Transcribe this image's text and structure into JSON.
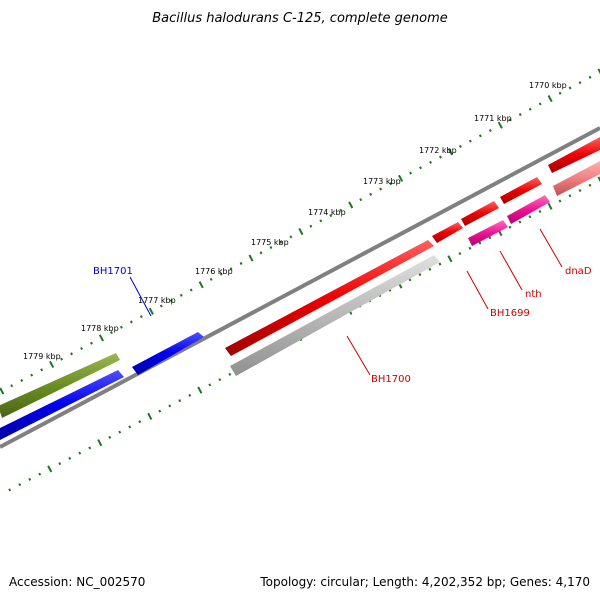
{
  "title": "Bacillus halodurans C-125, complete genome",
  "footer": {
    "accession": "Accession: NC_002570",
    "summary": "Topology: circular; Length: 4,202,352 bp; Genes: 4,170"
  },
  "scale_labels": [
    "1770 kbp",
    "1771 kbp",
    "1772 kbp",
    "1773 kbp",
    "1774 kbp",
    "1775 kbp",
    "1776 kbp",
    "1777 kbp",
    "1778 kbp",
    "1779 kbp"
  ],
  "genes": [
    {
      "name": "BH1701",
      "color": "#0000cc"
    },
    {
      "name": "BH1700",
      "color": "#cc0000"
    },
    {
      "name": "BH1699",
      "color": "#cc0000"
    },
    {
      "name": "nth",
      "color": "#cc0000"
    },
    {
      "name": "dnaD",
      "color": "#cc0000"
    }
  ],
  "colors": {
    "backbone": "#808080",
    "tick": "#1a7a1a",
    "blue_gene": "#0000ee",
    "olive_gene": "#6b8e23",
    "red_gene": "#ee0000",
    "magenta_gene": "#ee1493",
    "grey_gene": "#b0b0b0",
    "pink_gene": "#f08080"
  }
}
